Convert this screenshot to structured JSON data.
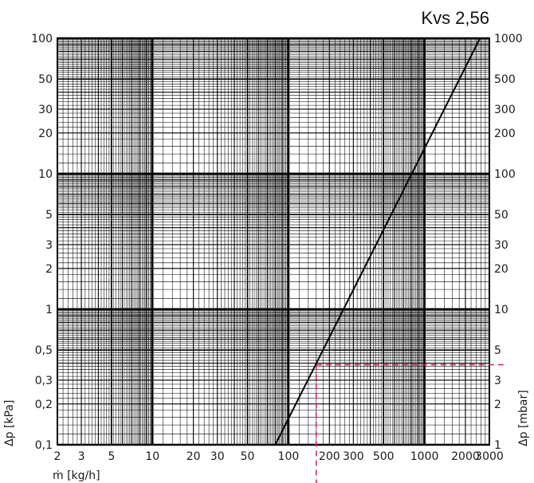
{
  "chart_data": {
    "type": "line",
    "title": "Kvs 2,56",
    "xlabel": "ṁ [kg/h]",
    "ylabel_left": "Δp [kPa]",
    "ylabel_right": "Δp [mbar]",
    "x_scale": "log",
    "y_scale": "log",
    "xlim": [
      2,
      3000
    ],
    "ylim": [
      0.1,
      100
    ],
    "grid": true,
    "x_ticks": [
      {
        "value": 2,
        "label": "2"
      },
      {
        "value": 3,
        "label": "3"
      },
      {
        "value": 5,
        "label": "5"
      },
      {
        "value": 10,
        "label": "10"
      },
      {
        "value": 20,
        "label": "20"
      },
      {
        "value": 30,
        "label": "30"
      },
      {
        "value": 50,
        "label": "50"
      },
      {
        "value": 100,
        "label": "100"
      },
      {
        "value": 200,
        "label": "200"
      },
      {
        "value": 300,
        "label": "300"
      },
      {
        "value": 500,
        "label": "500"
      },
      {
        "value": 1000,
        "label": "1000"
      },
      {
        "value": 2000,
        "label": "2000"
      },
      {
        "value": 3000,
        "label": "3000"
      }
    ],
    "y_ticks_left": [
      {
        "value": 0.1,
        "label": "0,1"
      },
      {
        "value": 0.2,
        "label": "0,2"
      },
      {
        "value": 0.3,
        "label": "0,3"
      },
      {
        "value": 0.5,
        "label": "0,5"
      },
      {
        "value": 1,
        "label": "1"
      },
      {
        "value": 2,
        "label": "2"
      },
      {
        "value": 3,
        "label": "3"
      },
      {
        "value": 5,
        "label": "5"
      },
      {
        "value": 10,
        "label": "10"
      },
      {
        "value": 20,
        "label": "20"
      },
      {
        "value": 30,
        "label": "30"
      },
      {
        "value": 50,
        "label": "50"
      },
      {
        "value": 100,
        "label": "100"
      }
    ],
    "y_ticks_right": [
      {
        "value": 0.1,
        "label": "1"
      },
      {
        "value": 0.2,
        "label": "2"
      },
      {
        "value": 0.3,
        "label": "3"
      },
      {
        "value": 0.5,
        "label": "5"
      },
      {
        "value": 1,
        "label": "10"
      },
      {
        "value": 2,
        "label": "20"
      },
      {
        "value": 3,
        "label": "30"
      },
      {
        "value": 5,
        "label": "50"
      },
      {
        "value": 10,
        "label": "100"
      },
      {
        "value": 20,
        "label": "200"
      },
      {
        "value": 30,
        "label": "300"
      },
      {
        "value": 50,
        "label": "500"
      },
      {
        "value": 100,
        "label": "1000"
      }
    ],
    "series": [
      {
        "points": [
          {
            "x": 80,
            "y": 0.1
          },
          {
            "x": 2560,
            "y": 100
          }
        ]
      }
    ],
    "annotations": [
      {
        "x": 160,
        "y": 0.39
      }
    ],
    "colors": {
      "grid": "#000000",
      "line": "#000000",
      "annotation": "#d6285a"
    }
  }
}
